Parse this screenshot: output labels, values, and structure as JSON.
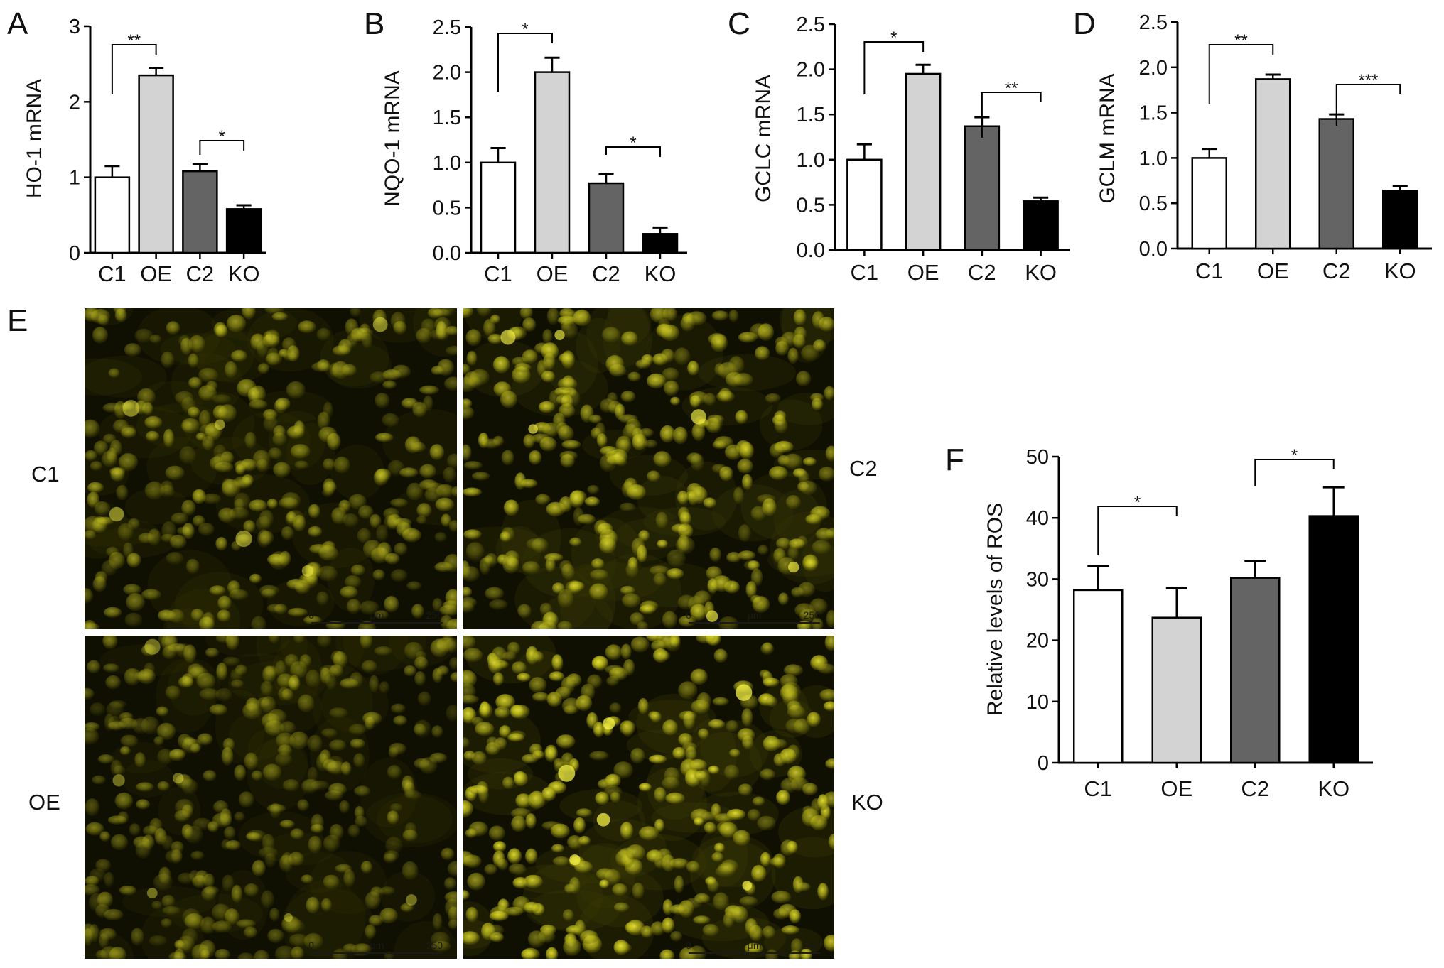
{
  "chart_data": [
    {
      "panel": "A",
      "type": "bar",
      "categories": [
        "C1",
        "OE",
        "C2",
        "KO"
      ],
      "values": [
        1.0,
        2.35,
        1.08,
        0.58
      ],
      "errors": [
        0.15,
        0.1,
        0.1,
        0.05
      ],
      "colors": [
        "#ffffff",
        "#d3d3d3",
        "#646464",
        "#000000"
      ],
      "ylabel": "HO-1 mRNA",
      "ylim": [
        0,
        3
      ],
      "yticks": [
        "0",
        "1",
        "2",
        "3"
      ],
      "significance": [
        {
          "from": 0,
          "to": 1,
          "label": "**"
        },
        {
          "from": 2,
          "to": 3,
          "label": "*"
        }
      ],
      "grid": false
    },
    {
      "panel": "B",
      "type": "bar",
      "categories": [
        "C1",
        "OE",
        "C2",
        "KO"
      ],
      "values": [
        1.0,
        2.0,
        0.77,
        0.21
      ],
      "errors": [
        0.16,
        0.16,
        0.1,
        0.07
      ],
      "colors": [
        "#ffffff",
        "#d3d3d3",
        "#646464",
        "#000000"
      ],
      "ylabel": "NQO-1 mRNA",
      "ylim": [
        0,
        2.5
      ],
      "yticks": [
        "0.0",
        "0.5",
        "1.0",
        "1.5",
        "2.0",
        "2.5"
      ],
      "significance": [
        {
          "from": 0,
          "to": 1,
          "label": "*"
        },
        {
          "from": 2,
          "to": 3,
          "label": "*"
        }
      ],
      "grid": false
    },
    {
      "panel": "C",
      "type": "bar",
      "categories": [
        "C1",
        "OE",
        "C2",
        "KO"
      ],
      "values": [
        1.0,
        1.95,
        1.37,
        0.54
      ],
      "errors": [
        0.17,
        0.1,
        0.1,
        0.04
      ],
      "colors": [
        "#ffffff",
        "#d3d3d3",
        "#646464",
        "#000000"
      ],
      "ylabel": "GCLC mRNA",
      "ylim": [
        0,
        2.5
      ],
      "yticks": [
        "0.0",
        "0.5",
        "1.0",
        "1.5",
        "2.0",
        "2.5"
      ],
      "significance": [
        {
          "from": 0,
          "to": 1,
          "label": "*"
        },
        {
          "from": 2,
          "to": 3,
          "label": "**"
        }
      ],
      "grid": false
    },
    {
      "panel": "D",
      "type": "bar",
      "categories": [
        "C1",
        "OE",
        "C2",
        "KO"
      ],
      "values": [
        1.0,
        1.87,
        1.43,
        0.64
      ],
      "errors": [
        0.1,
        0.05,
        0.05,
        0.05
      ],
      "colors": [
        "#ffffff",
        "#d3d3d3",
        "#646464",
        "#000000"
      ],
      "ylabel": "GCLM mRNA",
      "ylim": [
        0,
        2.5
      ],
      "yticks": [
        "0.0",
        "0.5",
        "1.0",
        "1.5",
        "2.0",
        "2.5"
      ],
      "significance": [
        {
          "from": 0,
          "to": 1,
          "label": "**"
        },
        {
          "from": 2,
          "to": 3,
          "label": "***"
        }
      ],
      "grid": false
    },
    {
      "panel": "F",
      "type": "bar",
      "categories": [
        "C1",
        "OE",
        "C2",
        "KO"
      ],
      "values": [
        28.2,
        23.7,
        30.2,
        40.3
      ],
      "errors": [
        3.9,
        4.8,
        2.8,
        4.7
      ],
      "colors": [
        "#ffffff",
        "#d3d3d3",
        "#646464",
        "#000000"
      ],
      "ylabel": "Relative levels of ROS",
      "ylim": [
        0,
        50
      ],
      "yticks": [
        "0",
        "10",
        "20",
        "30",
        "40",
        "50"
      ],
      "significance": [
        {
          "from": 0,
          "to": 1,
          "label": "*"
        },
        {
          "from": 2,
          "to": 3,
          "label": "*"
        }
      ],
      "grid": false
    }
  ],
  "micrographs": {
    "panel": "E",
    "labels": {
      "top_left": "C1",
      "top_right": "C2",
      "bottom_left": "OE",
      "bottom_right": "KO"
    },
    "scale_bar": {
      "start": "0",
      "unit": "μm",
      "end": "250"
    },
    "colors": {
      "background": "#0f0f02",
      "cell": "#b9b617"
    }
  }
}
